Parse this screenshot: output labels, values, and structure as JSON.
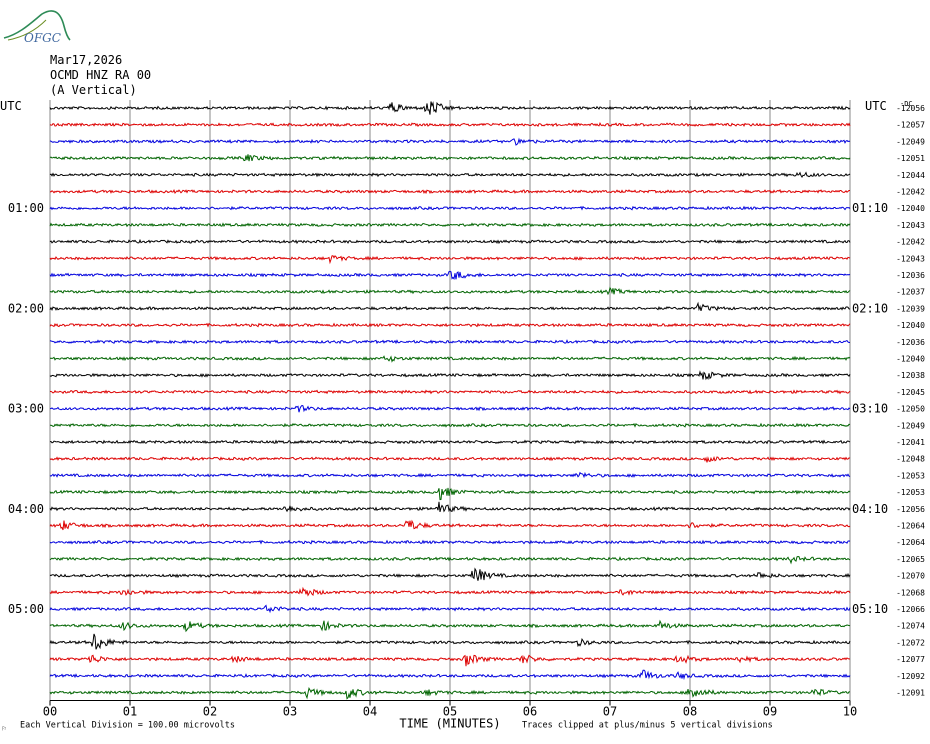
{
  "header": {
    "date": "Mar17,2026",
    "station": "OCMD HNZ RA 00",
    "component": "(A Vertical)",
    "logo_text": "OFGC"
  },
  "axis": {
    "utc_left": "UTC",
    "utc_right": "UTC",
    "right_top_label": "-DC",
    "xlabel": "TIME (MINUTES)",
    "footnote_left": "Each Vertical Division =  100.00 microvolts",
    "footnote_right": "Traces clipped at plus/minus 5 vertical divisions",
    "corner_mark": "⚐"
  },
  "chart_data": {
    "type": "line",
    "title": "",
    "xlabel": "TIME (MINUTES)",
    "xlim": [
      0,
      10
    ],
    "x_ticks": [
      "00",
      "01",
      "02",
      "03",
      "04",
      "05",
      "06",
      "07",
      "08",
      "09",
      "10"
    ],
    "trace_colors": [
      "#000000",
      "#dd0000",
      "#0000dd",
      "#006400"
    ],
    "left_time_labels": [
      {
        "row": 6,
        "text": "01:00"
      },
      {
        "row": 12,
        "text": "02:00"
      },
      {
        "row": 18,
        "text": "03:00"
      },
      {
        "row": 24,
        "text": "04:00"
      },
      {
        "row": 30,
        "text": "05:00"
      }
    ],
    "right_time_labels": [
      {
        "row": 6,
        "text": "01:10"
      },
      {
        "row": 12,
        "text": "02:10"
      },
      {
        "row": 18,
        "text": "03:10"
      },
      {
        "row": 24,
        "text": "04:10"
      },
      {
        "row": 30,
        "text": "05:10"
      }
    ],
    "dc_offsets": [
      "-12056",
      "-12057",
      "-12049",
      "-12051",
      "-12044",
      "-12042",
      "-12040",
      "-12043",
      "-12042",
      "-12043",
      "-12036",
      "-12037",
      "-12039",
      "-12040",
      "-12036",
      "-12040",
      "-12038",
      "-12045",
      "-12050",
      "-12049",
      "-12041",
      "-12048",
      "-12053",
      "-12053",
      "-12056",
      "-12064",
      "-12064",
      "-12065",
      "-12070",
      "-12068",
      "-12066",
      "-12074",
      "-12072",
      "-12077",
      "-12092",
      "-12091"
    ],
    "events": [
      [
        {
          "t": 4.25,
          "a": 6
        },
        {
          "t": 4.72,
          "a": 11
        }
      ],
      [],
      [
        {
          "t": 5.8,
          "a": 3
        }
      ],
      [
        {
          "t": 2.45,
          "a": 4
        }
      ],
      [
        {
          "t": 9.35,
          "a": 3
        }
      ],
      [],
      [],
      [],
      [],
      [
        {
          "t": 3.5,
          "a": 3
        }
      ],
      [
        {
          "t": 5.02,
          "a": 6
        }
      ],
      [
        {
          "t": 7.0,
          "a": 3
        }
      ],
      [
        {
          "t": 8.1,
          "a": 4
        }
      ],
      [],
      [],
      [
        {
          "t": 4.2,
          "a": 3
        }
      ],
      [
        {
          "t": 8.15,
          "a": 5
        }
      ],
      [],
      [
        {
          "t": 3.1,
          "a": 3
        }
      ],
      [],
      [],
      [
        {
          "t": 8.2,
          "a": 3
        }
      ],
      [
        {
          "t": 6.6,
          "a": 3
        }
      ],
      [
        {
          "t": 4.85,
          "a": 9
        }
      ],
      [
        {
          "t": 2.95,
          "a": 4
        },
        {
          "t": 4.85,
          "a": 7
        }
      ],
      [
        {
          "t": 0.15,
          "a": 5
        },
        {
          "t": 4.45,
          "a": 7
        },
        {
          "t": 8.0,
          "a": 3
        }
      ],
      [],
      [
        {
          "t": 9.25,
          "a": 3
        }
      ],
      [
        {
          "t": 5.3,
          "a": 10
        },
        {
          "t": 8.85,
          "a": 3
        }
      ],
      [
        {
          "t": 0.9,
          "a": 4
        },
        {
          "t": 3.15,
          "a": 6
        },
        {
          "t": 7.15,
          "a": 3
        }
      ],
      [
        {
          "t": 2.7,
          "a": 4
        }
      ],
      [
        {
          "t": 0.9,
          "a": 4
        },
        {
          "t": 1.7,
          "a": 5
        },
        {
          "t": 3.4,
          "a": 5
        },
        {
          "t": 7.6,
          "a": 5
        }
      ],
      [
        {
          "t": 0.55,
          "a": 10
        },
        {
          "t": 6.6,
          "a": 3
        }
      ],
      [
        {
          "t": 0.5,
          "a": 5
        },
        {
          "t": 2.3,
          "a": 3
        },
        {
          "t": 5.2,
          "a": 7
        },
        {
          "t": 5.9,
          "a": 5
        },
        {
          "t": 7.85,
          "a": 5
        },
        {
          "t": 8.6,
          "a": 3
        }
      ],
      [
        {
          "t": 7.4,
          "a": 6
        },
        {
          "t": 7.85,
          "a": 3
        }
      ],
      [
        {
          "t": 3.2,
          "a": 5
        },
        {
          "t": 3.7,
          "a": 7
        },
        {
          "t": 4.7,
          "a": 3
        },
        {
          "t": 8.0,
          "a": 9
        },
        {
          "t": 9.55,
          "a": 4
        }
      ]
    ]
  }
}
